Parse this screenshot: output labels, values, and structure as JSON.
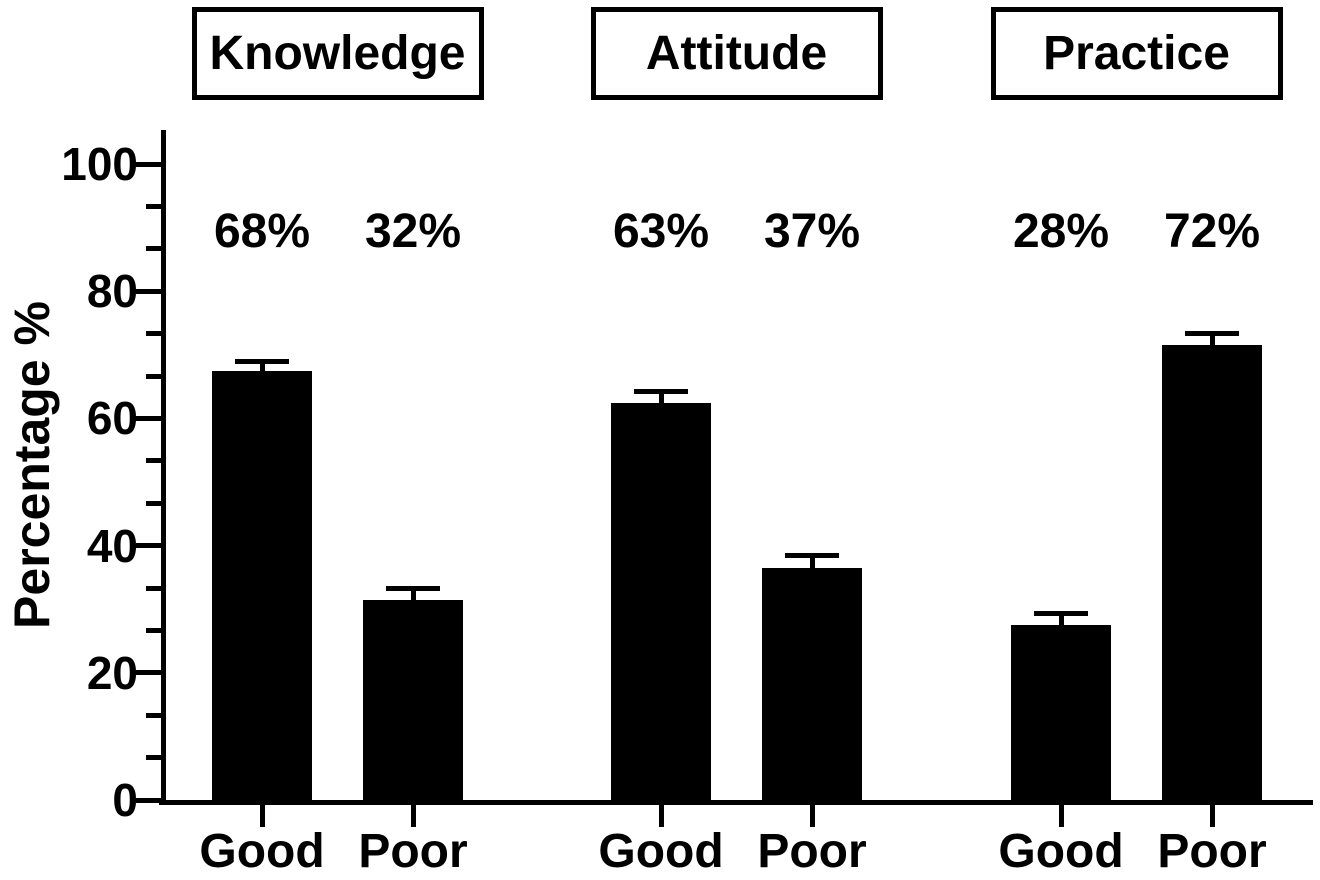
{
  "figure": {
    "background_color": "#ffffff",
    "ink_color": "#000000"
  },
  "chart_data": {
    "type": "bar",
    "title": "",
    "xlabel": "",
    "ylabel": "Percentage %",
    "ylim": [
      0,
      100
    ],
    "y_major_ticks": [
      0,
      20,
      40,
      60,
      80,
      100
    ],
    "y_minor_divisions_per_major": 3,
    "grid": false,
    "legend": "none",
    "bar_color": "#000000",
    "error_bars": "SEM, upper only",
    "groups": [
      {
        "label": "Knowledge",
        "bars": [
          {
            "category": "Good",
            "value": 67.5,
            "error": 1.5,
            "data_label": "68%"
          },
          {
            "category": "Poor",
            "value": 31.5,
            "error": 1.8,
            "data_label": "32%"
          }
        ]
      },
      {
        "label": "Attitude",
        "bars": [
          {
            "category": "Good",
            "value": 62.5,
            "error": 1.8,
            "data_label": "63%"
          },
          {
            "category": "Poor",
            "value": 36.5,
            "error": 2.0,
            "data_label": "37%"
          }
        ]
      },
      {
        "label": "Practice",
        "bars": [
          {
            "category": "Good",
            "value": 27.5,
            "error": 1.9,
            "data_label": "28%"
          },
          {
            "category": "Poor",
            "value": 71.5,
            "error": 1.9,
            "data_label": "72%"
          }
        ]
      }
    ]
  }
}
